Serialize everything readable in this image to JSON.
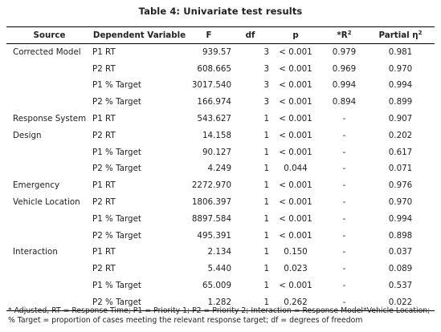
{
  "caption": "Table 4: Univariate test results",
  "headers": {
    "source": "Source",
    "dependent": "Dependent Variable",
    "f": "F",
    "df": "df",
    "p": "p",
    "r2_prefix": "*R",
    "r2_sup": "2",
    "eta_prefix": "Partial η",
    "eta_sup": "2"
  },
  "rows": [
    {
      "source": "Corrected Model",
      "dependent": "P1 RT",
      "f": "939.57",
      "df": "3",
      "p": "< 0.001",
      "r2": "0.979",
      "eta": "0.981"
    },
    {
      "source": "",
      "dependent": "P2 RT",
      "f": "608.665",
      "df": "3",
      "p": "< 0.001",
      "r2": "0.969",
      "eta": "0.970"
    },
    {
      "source": "",
      "dependent": "P1 % Target",
      "f": "3017.540",
      "df": "3",
      "p": "< 0.001",
      "r2": "0.994",
      "eta": "0.994"
    },
    {
      "source": "",
      "dependent": "P2 % Target",
      "f": "166.974",
      "df": "3",
      "p": "< 0.001",
      "r2": "0.894",
      "eta": "0.899"
    },
    {
      "source": "Response System",
      "dependent": "P1 RT",
      "f": "543.627",
      "df": "1",
      "p": "< 0.001",
      "r2": "-",
      "eta": "0.907"
    },
    {
      "source": "Design",
      "dependent": "P2 RT",
      "f": "14.158",
      "df": "1",
      "p": "< 0.001",
      "r2": "-",
      "eta": "0.202"
    },
    {
      "source": "",
      "dependent": "P1 % Target",
      "f": "90.127",
      "df": "1",
      "p": "< 0.001",
      "r2": "-",
      "eta": "0.617"
    },
    {
      "source": "",
      "dependent": "P2 % Target",
      "f": "4.249",
      "df": "1",
      "p": "0.044",
      "r2": "-",
      "eta": "0.071"
    },
    {
      "source": "Emergency",
      "dependent": "P1 RT",
      "f": "2272.970",
      "df": "1",
      "p": "< 0.001",
      "r2": "-",
      "eta": "0.976"
    },
    {
      "source": "Vehicle Location",
      "dependent": "P2 RT",
      "f": "1806.397",
      "df": "1",
      "p": "< 0.001",
      "r2": "-",
      "eta": "0.970"
    },
    {
      "source": "",
      "dependent": "P1 % Target",
      "f": "8897.584",
      "df": "1",
      "p": "< 0.001",
      "r2": "-",
      "eta": "0.994"
    },
    {
      "source": "",
      "dependent": "P2 % Target",
      "f": "495.391",
      "df": "1",
      "p": "< 0.001",
      "r2": "-",
      "eta": "0.898"
    },
    {
      "source": "Interaction",
      "dependent": "P1 RT",
      "f": "2.134",
      "df": "1",
      "p": "0.150",
      "r2": "-",
      "eta": "0.037"
    },
    {
      "source": "",
      "dependent": "P2 RT",
      "f": "5.440",
      "df": "1",
      "p": "0.023",
      "r2": "-",
      "eta": "0.089"
    },
    {
      "source": "",
      "dependent": "P1 % Target",
      "f": "65.009",
      "df": "1",
      "p": "< 0.001",
      "r2": "-",
      "eta": "0.537"
    },
    {
      "source": "",
      "dependent": "P2 % Target",
      "f": "1.282",
      "df": "1",
      "p": "0.262",
      "r2": "-",
      "eta": "0.022"
    }
  ],
  "footnote": "* Adjusted, RT = Response Time; P1 = Priority 1; P2 = Priority 2; Interaction = Response Model*Vehicle Location; % Target = proportion of cases meeting the relevant response target; df = degrees of freedom"
}
